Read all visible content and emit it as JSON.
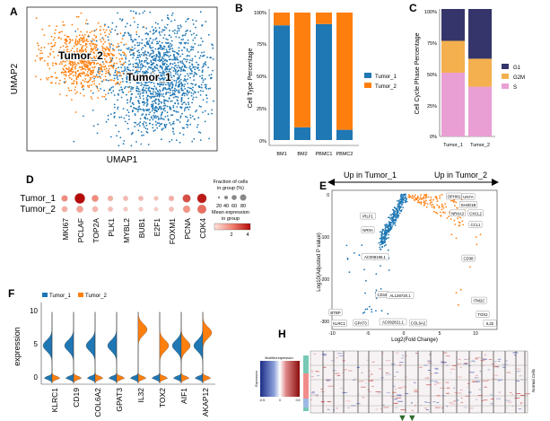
{
  "panel_letters": {
    "a": "A",
    "b": "B",
    "c": "C",
    "d": "D",
    "e": "E",
    "f": "F",
    "h": "H"
  },
  "colors": {
    "tumor1": "#1f77b4",
    "tumor2": "#ff7f0e",
    "g1": "#35356b",
    "g2m": "#f4b04e",
    "s": "#e99fd3",
    "dot_low": "#fde2dc",
    "dot_high": "#b40a0a"
  },
  "chart_data": [
    {
      "id": "A",
      "type": "scatter",
      "title": "",
      "xlabel": "UMAP1",
      "ylabel": "UMAP2",
      "clusters": [
        {
          "name": "Tumor_2",
          "label": "Tumor_2",
          "color": "#ff7f0e"
        },
        {
          "name": "Tumor_1",
          "label": "Tumor_1",
          "color": "#1f77b4"
        }
      ]
    },
    {
      "id": "B",
      "type": "bar",
      "stacked": true,
      "ylabel": "Cell Type Percentage",
      "categories": [
        "BM1",
        "BM2",
        "PBMC1",
        "PBMC2"
      ],
      "series": [
        {
          "name": "Tumor_1",
          "values": [
            90,
            10,
            91,
            8
          ]
        },
        {
          "name": "Tumor_2",
          "values": [
            10,
            90,
            9,
            92
          ]
        }
      ],
      "yticks": [
        "0%",
        "25%",
        "50%",
        "75%",
        "100%"
      ],
      "ylim": [
        0,
        100
      ],
      "legend": [
        "Tumor_1",
        "Tumor_2"
      ]
    },
    {
      "id": "C",
      "type": "bar",
      "stacked": true,
      "ylabel": "Cell Cycle Phase Percentage",
      "categories": [
        "Tumor_1",
        "Tumor_2"
      ],
      "series": [
        {
          "name": "S",
          "values": [
            50,
            39
          ]
        },
        {
          "name": "G2M",
          "values": [
            25,
            22
          ]
        },
        {
          "name": "G1",
          "values": [
            25,
            39
          ]
        }
      ],
      "yticks": [
        "0%",
        "25%",
        "50%",
        "75%",
        "100%"
      ],
      "ylim": [
        0,
        100
      ],
      "legend": [
        "G1",
        "G2M",
        "S"
      ]
    },
    {
      "id": "D",
      "type": "dotplot",
      "rows": [
        "Tumor_1",
        "Tumor_2"
      ],
      "genes": [
        "MKI67",
        "PCLAF",
        "TOP2A",
        "PLK1",
        "MYBL2",
        "BUB1",
        "E2F1",
        "FOXM1",
        "PCNA",
        "CDK4"
      ],
      "fraction": [
        [
          40,
          85,
          45,
          30,
          25,
          25,
          20,
          30,
          60,
          75
        ],
        [
          35,
          45,
          35,
          25,
          20,
          20,
          15,
          25,
          50,
          70
        ]
      ],
      "mean_expression": [
        [
          2.0,
          4.5,
          2.0,
          1.2,
          1.0,
          1.0,
          0.8,
          1.2,
          3.2,
          4.2
        ],
        [
          1.2,
          1.5,
          1.0,
          0.8,
          0.6,
          0.6,
          0.5,
          0.8,
          1.8,
          2.6
        ]
      ],
      "legend_fraction_title": [
        "Fraction of cells",
        "in group (%)"
      ],
      "legend_fraction_ticks": [
        "20",
        "40",
        "60",
        "80"
      ],
      "legend_expr_title": [
        "Mean expression",
        "in group"
      ],
      "legend_expr_ticks": [
        "2",
        "4"
      ]
    },
    {
      "id": "E",
      "type": "scatter",
      "subtype": "volcano",
      "xlabel": "Log2(Fold Change)",
      "ylabel": "Log10(Adjusted P value)",
      "xticks": [
        "-10",
        "-5",
        "0",
        "5",
        "10"
      ],
      "yticks": [
        "0",
        "-100",
        "-200",
        "-300"
      ],
      "xlim": [
        -10,
        13
      ],
      "ylim": [
        -320,
        10
      ],
      "arrow_left_label": "Up in Tumor_1",
      "arrow_right_label": "Up in Tumor_2",
      "labels": [
        {
          "text": "OPHN1",
          "x": 7.0,
          "y": -5
        },
        {
          "text": "UN7A",
          "x": 9.0,
          "y": -6
        },
        {
          "text": "SH2D1B",
          "x": 9.0,
          "y": -25
        },
        {
          "text": "NR4A3",
          "x": 7.5,
          "y": -45
        },
        {
          "text": "CXCL2",
          "x": 10.0,
          "y": -45
        },
        {
          "text": "CCL1",
          "x": 10.0,
          "y": -72
        },
        {
          "text": "IRLF1",
          "x": -5.0,
          "y": -52
        },
        {
          "text": "NR0A",
          "x": -5.0,
          "y": -85
        },
        {
          "text": "AC008196.1",
          "x": -4.0,
          "y": -148
        },
        {
          "text": "CD38",
          "x": 9.0,
          "y": -152
        },
        {
          "text": "CD19",
          "x": -3.0,
          "y": -238
        },
        {
          "text": "AL138720.1",
          "x": -0.5,
          "y": -240
        },
        {
          "text": "ITM2C",
          "x": 10.5,
          "y": -252
        },
        {
          "text": "BTBP",
          "x": -9.5,
          "y": -280
        },
        {
          "text": "COL6A2",
          "x": 2.0,
          "y": -305
        },
        {
          "text": "TOX2",
          "x": 11.0,
          "y": -285
        },
        {
          "text": "AC092821.1",
          "x": -1.5,
          "y": -303
        },
        {
          "text": "GPAT3",
          "x": -6.0,
          "y": -305
        },
        {
          "text": "KLRC1",
          "x": -9.0,
          "y": -306
        },
        {
          "text": "IL32",
          "x": 12.0,
          "y": -306
        }
      ]
    },
    {
      "id": "F",
      "type": "violin",
      "ylabel": "expression",
      "genes": [
        "KLRC1",
        "CD19",
        "COL6A2",
        "GPAT3",
        "IL32",
        "TOX2",
        "AIF1",
        "AKAP12"
      ],
      "yticks": [
        "0",
        "5",
        "10"
      ],
      "ylim": [
        -1,
        11
      ],
      "legend": [
        "Tumor_1",
        "Tumor_2"
      ],
      "tumor1_high_mode": [
        5.0,
        5.0,
        5.0,
        5.0,
        0,
        0,
        5.0,
        5.0
      ],
      "tumor2_high_mode": [
        0,
        0,
        0,
        0,
        7.5,
        5.0,
        5.0,
        7.0
      ]
    },
    {
      "id": "H",
      "type": "heatmap",
      "colorbar_ticks": [
        "-0.5",
        "0",
        "0.5"
      ],
      "colorbar_title": "Modified expression",
      "colorbar_label": "Expression",
      "right_label": "Normal Cells"
    }
  ]
}
